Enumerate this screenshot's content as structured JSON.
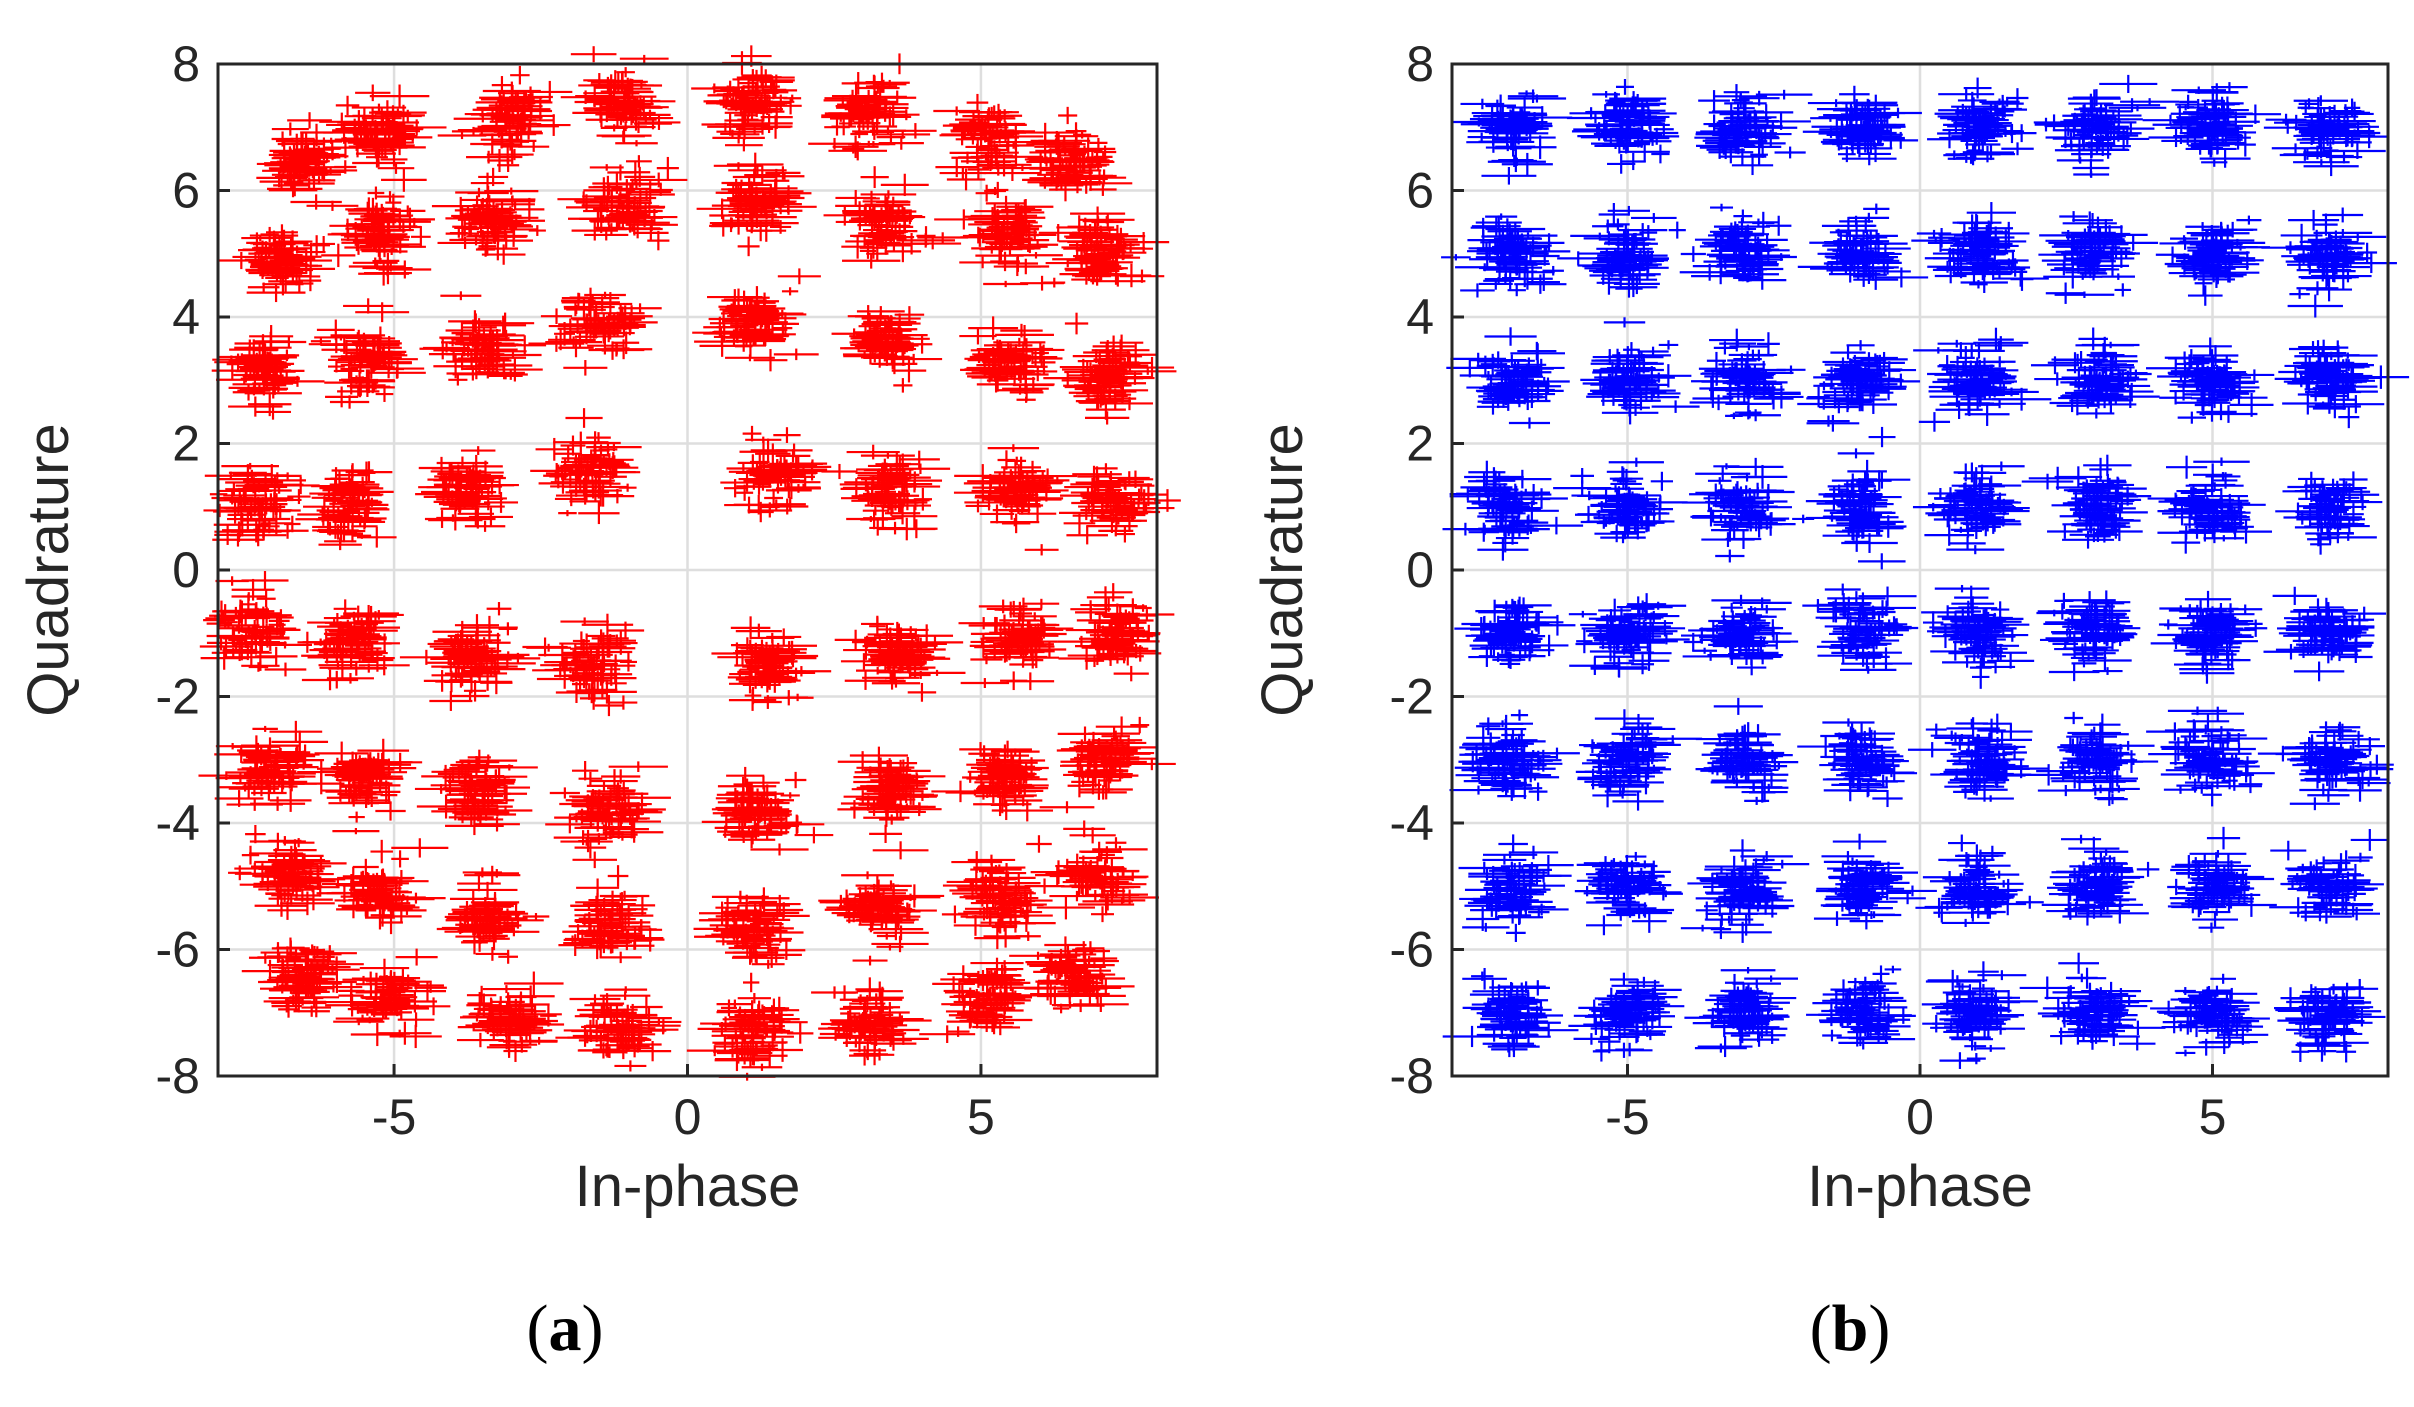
{
  "figure": {
    "panel_labels": [
      {
        "open": "(",
        "letter": "a",
        "close": ")"
      },
      {
        "open": "(",
        "letter": "b",
        "close": ")"
      }
    ]
  },
  "chart_data": [
    {
      "type": "scatter",
      "title": "",
      "xlabel": "In-phase",
      "ylabel": "Quadrature",
      "xlim": [
        -8,
        8
      ],
      "ylim": [
        -8,
        8
      ],
      "xticks": [
        -5,
        0,
        5
      ],
      "xtick_labels": [
        "-5",
        "0",
        "5"
      ],
      "yticks": [
        -8,
        -6,
        -4,
        -2,
        0,
        2,
        4,
        6,
        8
      ],
      "ytick_labels": [
        "-8",
        "-6",
        "-4",
        "-2",
        "0",
        "2",
        "4",
        "6",
        "8"
      ],
      "grid": true,
      "color": "#ff0000",
      "marker": "plus",
      "series": [
        {
          "description": "64-QAM constellation clusters with phase rotation",
          "points": [
            [
              -6.5,
              6.4
            ],
            [
              -5.2,
              6.9
            ],
            [
              -3.0,
              7.1
            ],
            [
              -1.1,
              7.4
            ],
            [
              1.1,
              7.4
            ],
            [
              3.1,
              7.2
            ],
            [
              5.1,
              6.8
            ],
            [
              6.6,
              6.4
            ],
            [
              -6.9,
              4.9
            ],
            [
              -5.2,
              5.3
            ],
            [
              -3.4,
              5.5
            ],
            [
              -1.1,
              5.8
            ],
            [
              1.2,
              5.8
            ],
            [
              3.4,
              5.5
            ],
            [
              5.5,
              5.3
            ],
            [
              7.0,
              5.0
            ],
            [
              -7.2,
              3.1
            ],
            [
              -5.5,
              3.3
            ],
            [
              -3.5,
              3.5
            ],
            [
              -1.5,
              3.9
            ],
            [
              1.1,
              3.9
            ],
            [
              3.4,
              3.6
            ],
            [
              5.5,
              3.3
            ],
            [
              7.1,
              3.0
            ],
            [
              -7.3,
              1.1
            ],
            [
              -5.8,
              1.1
            ],
            [
              -3.8,
              1.3
            ],
            [
              -1.7,
              1.5
            ],
            [
              1.5,
              1.5
            ],
            [
              3.5,
              1.3
            ],
            [
              5.6,
              1.2
            ],
            [
              7.3,
              1.1
            ],
            [
              -7.4,
              -1.0
            ],
            [
              -5.7,
              -1.1
            ],
            [
              -3.7,
              -1.4
            ],
            [
              -1.6,
              -1.5
            ],
            [
              1.4,
              -1.5
            ],
            [
              3.6,
              -1.3
            ],
            [
              5.6,
              -1.1
            ],
            [
              7.3,
              -1.0
            ],
            [
              -7.1,
              -3.1
            ],
            [
              -5.5,
              -3.3
            ],
            [
              -3.6,
              -3.5
            ],
            [
              -1.4,
              -3.8
            ],
            [
              1.2,
              -3.8
            ],
            [
              3.5,
              -3.5
            ],
            [
              5.4,
              -3.3
            ],
            [
              7.1,
              -3.0
            ],
            [
              -6.8,
              -4.8
            ],
            [
              -5.3,
              -5.1
            ],
            [
              -3.4,
              -5.5
            ],
            [
              -1.3,
              -5.6
            ],
            [
              1.1,
              -5.7
            ],
            [
              3.3,
              -5.4
            ],
            [
              5.4,
              -5.2
            ],
            [
              6.9,
              -4.8
            ],
            [
              -6.6,
              -6.4
            ],
            [
              -5.1,
              -6.8
            ],
            [
              -3.1,
              -7.1
            ],
            [
              -1.1,
              -7.3
            ],
            [
              1.1,
              -7.3
            ],
            [
              3.1,
              -7.2
            ],
            [
              5.1,
              -6.8
            ],
            [
              6.6,
              -6.4
            ]
          ]
        }
      ]
    },
    {
      "type": "scatter",
      "title": "",
      "xlabel": "In-phase",
      "ylabel": "Quadrature",
      "xlim": [
        -8,
        8
      ],
      "ylim": [
        -8,
        8
      ],
      "xticks": [
        -5,
        0,
        5
      ],
      "xtick_labels": [
        "-5",
        "0",
        "5"
      ],
      "yticks": [
        -8,
        -6,
        -4,
        -2,
        0,
        2,
        4,
        6,
        8
      ],
      "ytick_labels": [
        "-8",
        "-6",
        "-4",
        "-2",
        "0",
        "2",
        "4",
        "6",
        "8"
      ],
      "grid": true,
      "color": "#0000ff",
      "marker": "plus",
      "series": [
        {
          "description": "64-QAM constellation clusters on a regular grid",
          "grid_levels": [
            -7,
            -5,
            -3,
            -1,
            1,
            3,
            5,
            7
          ]
        }
      ]
    }
  ]
}
